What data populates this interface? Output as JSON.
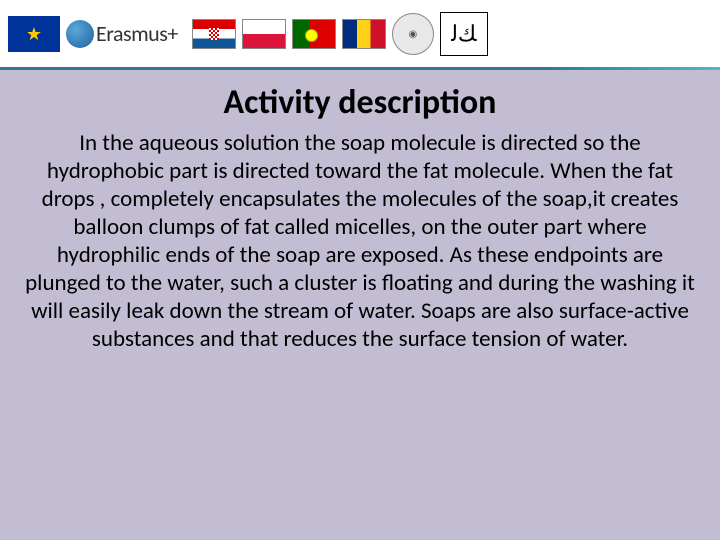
{
  "header": {
    "erasmus_label": "Erasmus+",
    "eu_stars": "★",
    "emblem_text": "◉",
    "arabic_text": "ﻚﻟ"
  },
  "content": {
    "title": "Activity description",
    "body": "In the aqueous solution the soap molecule is directed so the hydrophobic part is directed toward the fat molecule. When the fat drops , completely encapsulates the molecules of the soap,it creates balloon clumps of fat called micelles, on the outer part where  hydrophilic ends of the soap are exposed. As these endpoints are plunged to the water, such a cluster is floating and during the washing it will easily leak down the stream of water. Soaps are also surface-active substances and that reduces the surface tension of water."
  },
  "colors": {
    "background": "#c3bdd3",
    "banner_bg": "#ffffff",
    "banner_border": "#2a7a8a",
    "text": "#000000"
  },
  "typography": {
    "title_fontsize": 34,
    "title_weight": "bold",
    "body_fontsize": 23,
    "body_lineheight": 1.22,
    "font_family": "Calibri"
  }
}
